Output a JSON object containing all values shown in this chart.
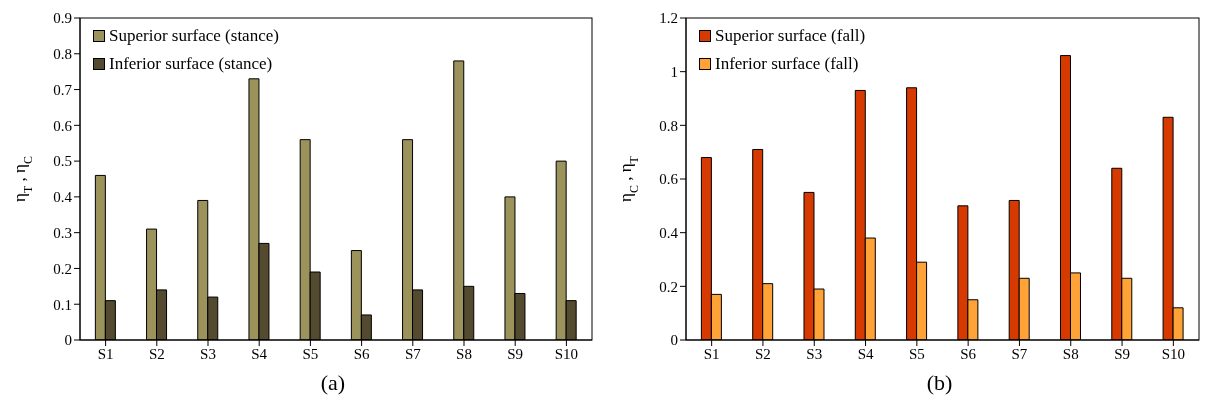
{
  "chart_data": [
    {
      "type": "bar",
      "ylabel": "η$_{T}$ , η$_{C}$",
      "categories": [
        "S1",
        "S2",
        "S3",
        "S4",
        "S5",
        "S6",
        "S7",
        "S8",
        "S9",
        "S10"
      ],
      "series": [
        {
          "name": "Superior surface (stance)",
          "color": "#9c925b",
          "values": [
            0.46,
            0.31,
            0.39,
            0.73,
            0.56,
            0.25,
            0.56,
            0.78,
            0.4,
            0.5
          ]
        },
        {
          "name": "Inferior surface (stance)",
          "color": "#544a2f",
          "values": [
            0.11,
            0.14,
            0.12,
            0.27,
            0.19,
            0.07,
            0.14,
            0.15,
            0.13,
            0.11
          ]
        }
      ],
      "ylim": [
        0,
        0.9
      ],
      "yticks": [
        0,
        0.1,
        0.2,
        0.3,
        0.4,
        0.5,
        0.6,
        0.7,
        0.8,
        0.9
      ],
      "grid": false,
      "legend": "top left",
      "annotations": [
        "(a)"
      ]
    },
    {
      "type": "bar",
      "ylabel": "η$_{C}$ , η$_{T}$",
      "categories": [
        "S1",
        "S2",
        "S3",
        "S4",
        "S5",
        "S6",
        "S7",
        "S8",
        "S9",
        "S10"
      ],
      "series": [
        {
          "name": "Superior surface (fall)",
          "color": "#d63a00",
          "values": [
            0.68,
            0.71,
            0.55,
            0.93,
            0.94,
            0.5,
            0.52,
            1.06,
            0.64,
            0.83
          ]
        },
        {
          "name": "Inferior surface (fall)",
          "color": "#ffa238",
          "values": [
            0.17,
            0.21,
            0.19,
            0.38,
            0.29,
            0.15,
            0.23,
            0.25,
            0.23,
            0.12
          ]
        }
      ],
      "ylim": [
        0,
        1.2
      ],
      "yticks": [
        0,
        0.2,
        0.4,
        0.6,
        0.8,
        1,
        1.2
      ],
      "grid": false,
      "legend": "top left",
      "annotations": [
        "(b)"
      ]
    }
  ]
}
